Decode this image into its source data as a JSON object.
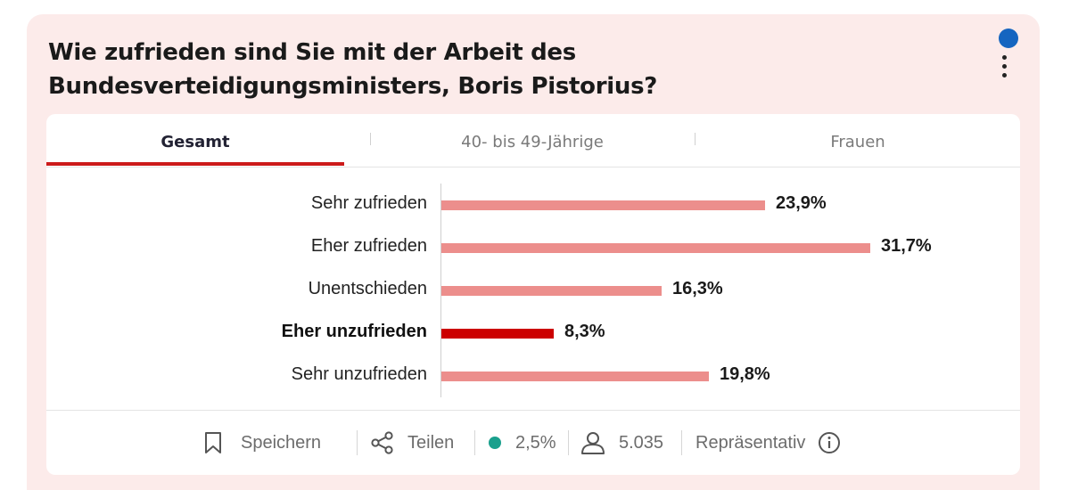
{
  "question": "Wie zufrieden sind Sie mit der Arbeit des Bundesverteidigungsministers, Boris Pistorius?",
  "colors": {
    "bar": "#ec8e8c",
    "bar_highlight": "#cc0000",
    "tab_underline": "#cc1a1a",
    "status_dot": "#1565c0",
    "margin_dot": "#1aa08d"
  },
  "tabs": [
    {
      "label": "Gesamt",
      "active": true
    },
    {
      "label": "40- bis 49-Jährige",
      "active": false
    },
    {
      "label": "Frauen",
      "active": false
    }
  ],
  "chart_data": {
    "type": "bar",
    "orientation": "horizontal",
    "categories": [
      "Sehr zufrieden",
      "Eher zufrieden",
      "Unentschieden",
      "Eher unzufrieden",
      "Sehr unzufrieden"
    ],
    "values": [
      23.9,
      31.7,
      16.3,
      8.3,
      19.8
    ],
    "value_labels": [
      "23,9%",
      "31,7%",
      "16,3%",
      "8,3%",
      "19,8%"
    ],
    "highlighted_category": "Eher unzufrieden",
    "unit": "%",
    "grid": false
  },
  "footer": {
    "save_label": "Speichern",
    "share_label": "Teilen",
    "error_margin": "2,5%",
    "respondents": "5.035",
    "representative_label": "Repräsentativ",
    "icons": [
      "bookmark-icon",
      "share-icon",
      "user-icon",
      "info-icon"
    ]
  }
}
